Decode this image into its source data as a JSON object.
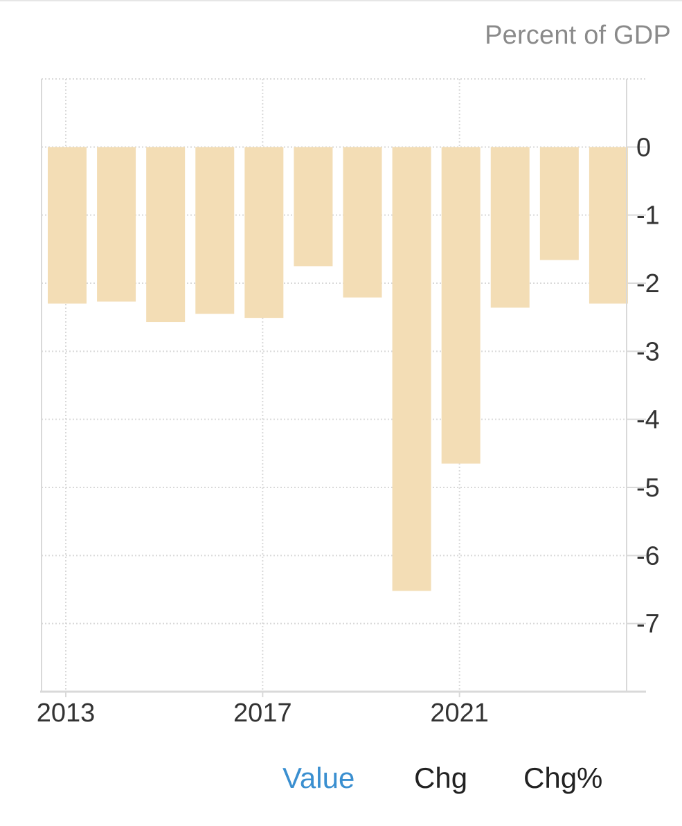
{
  "header": {
    "unit_label": "Percent of GDP"
  },
  "tabs": [
    {
      "label": "Value",
      "active": true
    },
    {
      "label": "Chg",
      "active": false
    },
    {
      "label": "Chg%",
      "active": false
    }
  ],
  "colors": {
    "bar": "#f3ddb5",
    "grid": "#d9d9d9",
    "axis": "#d9d9d9",
    "active_tab": "#3a8fd0"
  },
  "chart_data": {
    "type": "bar",
    "categories": [
      "2013",
      "2014",
      "2015",
      "2016",
      "2017",
      "2018",
      "2019",
      "2020",
      "2021",
      "2022",
      "2023",
      "2024"
    ],
    "values": [
      -2.3,
      -2.27,
      -2.57,
      -2.45,
      -2.51,
      -1.75,
      -2.21,
      -6.52,
      -4.65,
      -2.36,
      -1.66,
      -2.3
    ],
    "x_tick_labels": [
      "2013",
      "2017",
      "2021"
    ],
    "y_ticks": [
      0,
      -1,
      -2,
      -3,
      -4,
      -5,
      -6,
      -7
    ],
    "ylim": [
      -8,
      1
    ],
    "ylabel": "Percent of GDP",
    "grid": true,
    "y_axis_side": "right"
  }
}
